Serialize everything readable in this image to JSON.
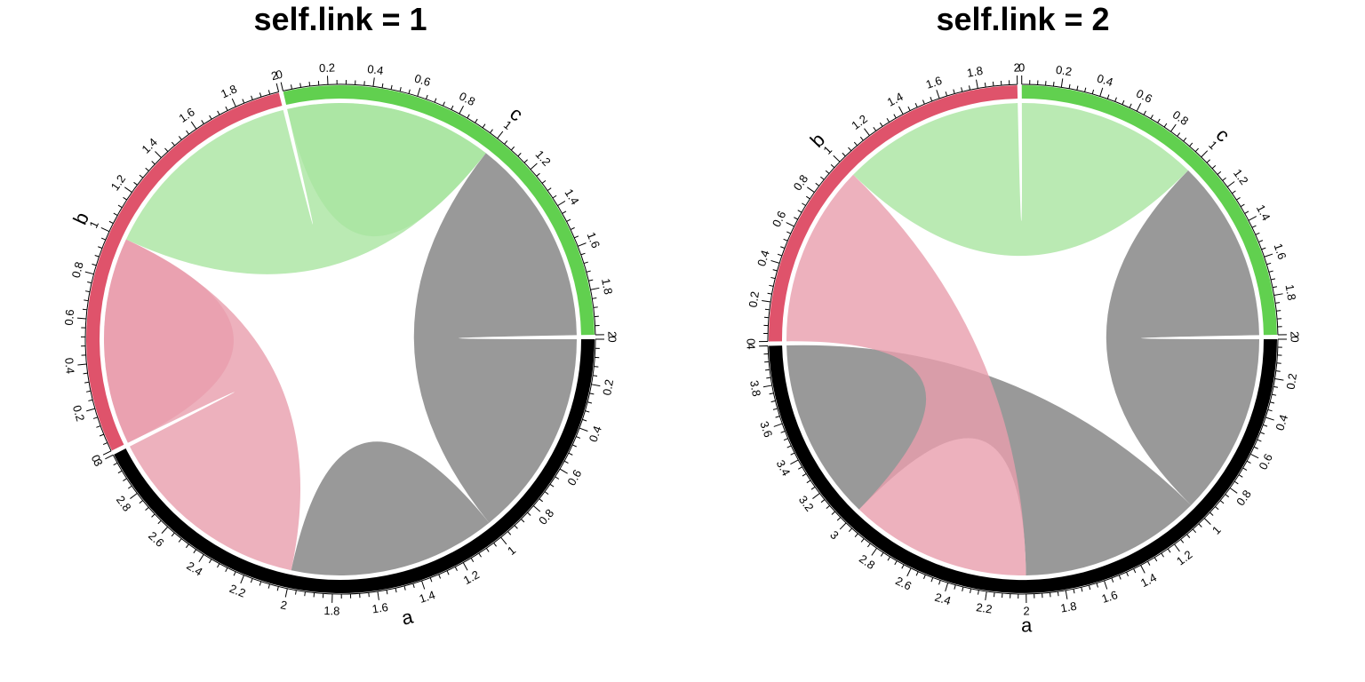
{
  "chart_data": [
    {
      "type": "chord",
      "title": "self.link = 1",
      "sectors": [
        {
          "name": "a",
          "length": 3,
          "color": "#000000"
        },
        {
          "name": "b",
          "length": 2,
          "color": "#DF536B"
        },
        {
          "name": "c",
          "length": 2,
          "color": "#61D04F"
        }
      ],
      "tick_labels": {
        "a": [
          "0",
          "0.2",
          "0.4",
          "0.6",
          "0.8",
          "1",
          "1.2",
          "1.4",
          "1.6",
          "1.8",
          "2",
          "2.2",
          "2.4",
          "2.6",
          "2.8",
          "3"
        ],
        "b": [
          "0",
          "0.2",
          "0.4",
          "0.6",
          "0.8",
          "1",
          "1.2",
          "1.4",
          "1.6",
          "1.8",
          "2"
        ],
        "c": [
          "0",
          "0.2",
          "0.4",
          "0.6",
          "0.8",
          "1",
          "1.2",
          "1.4",
          "1.6",
          "1.8",
          "2"
        ]
      },
      "links": [
        {
          "from": "a",
          "from_range": [
            0,
            1
          ],
          "to": "c",
          "to_range": [
            1,
            2
          ],
          "color": "#808080"
        },
        {
          "from": "a",
          "from_range": [
            1,
            2
          ],
          "to": "a",
          "to_range": [
            1,
            2
          ],
          "color": "#808080"
        },
        {
          "from": "a",
          "from_range": [
            2,
            3
          ],
          "to": "b",
          "to_range": [
            0,
            1
          ],
          "color": "#E99DAD"
        },
        {
          "from": "b",
          "from_range": [
            0,
            1
          ],
          "to": "b",
          "to_range": [
            0,
            1
          ],
          "color": "#E99DAD"
        },
        {
          "from": "b",
          "from_range": [
            1,
            2
          ],
          "to": "c",
          "to_range": [
            0,
            1
          ],
          "color": "#A9E5A0"
        },
        {
          "from": "c",
          "from_range": [
            0,
            1
          ],
          "to": "c",
          "to_range": [
            0,
            1
          ],
          "color": "#A9E5A0"
        }
      ]
    },
    {
      "type": "chord",
      "title": "self.link = 2",
      "sectors": [
        {
          "name": "a",
          "length": 4,
          "color": "#000000"
        },
        {
          "name": "b",
          "length": 2,
          "color": "#DF536B"
        },
        {
          "name": "c",
          "length": 2,
          "color": "#61D04F"
        }
      ],
      "tick_labels": {
        "a": [
          "0",
          "0.2",
          "0.4",
          "0.6",
          "0.8",
          "1",
          "1.2",
          "1.4",
          "1.6",
          "1.8",
          "2",
          "2.2",
          "2.4",
          "2.6",
          "2.8",
          "3",
          "3.2",
          "3.4",
          "3.6",
          "3.8",
          "4"
        ],
        "b": [
          "0",
          "0.2",
          "0.4",
          "0.6",
          "0.8",
          "1",
          "1.2",
          "1.4",
          "1.6",
          "1.8",
          "2"
        ],
        "c": [
          "0",
          "0.2",
          "0.4",
          "0.6",
          "0.8",
          "1",
          "1.2",
          "1.4",
          "1.6",
          "1.8",
          "2"
        ]
      },
      "links": [
        {
          "from": "a",
          "from_range": [
            0,
            1
          ],
          "to": "c",
          "to_range": [
            1,
            2
          ],
          "color": "#808080"
        },
        {
          "from": "a",
          "from_range": [
            1,
            2
          ],
          "to": "a",
          "to_range": [
            3,
            4
          ],
          "color": "#808080"
        },
        {
          "from": "a",
          "from_range": [
            2,
            3
          ],
          "to": "b",
          "to_range": [
            0,
            1
          ],
          "color": "#E99DAD"
        },
        {
          "from": "b",
          "from_range": [
            1,
            2
          ],
          "to": "c",
          "to_range": [
            0,
            1
          ],
          "color": "#A9E5A0"
        }
      ]
    }
  ]
}
